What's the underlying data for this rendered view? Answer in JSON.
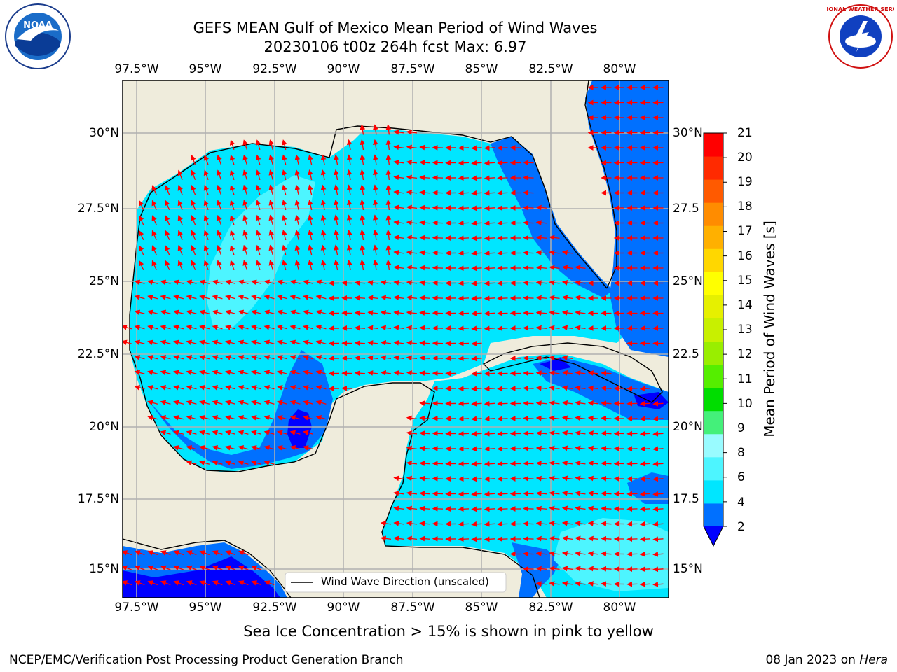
{
  "title": {
    "line1": "GEFS MEAN Gulf of Mexico Mean Period of Wind Waves",
    "line2": "20230106 t00z 264h fcst   Max: 6.97"
  },
  "axes": {
    "lon_labels": [
      "97.5°W",
      "95°W",
      "92.5°W",
      "90°W",
      "87.5°W",
      "85°W",
      "82.5°W",
      "80°W"
    ],
    "lat_labels_left": [
      "30°N",
      "27.5°N",
      "25°N",
      "22.5°N",
      "20°N",
      "17.5°N",
      "15°N"
    ],
    "lat_labels_right": [
      "30°N",
      "27.5",
      "25°N",
      "22.5",
      "20°N",
      "17.5",
      "15°N"
    ]
  },
  "legend": {
    "label": "Wind Wave Direction (unscaled)"
  },
  "colorbar": {
    "label": "Mean Period of Wind Waves [s]",
    "ticks": [
      "21",
      "20",
      "19",
      "18",
      "17",
      "16",
      "15",
      "14",
      "13",
      "12",
      "11",
      "10",
      "9",
      "8",
      "6",
      "4",
      "2"
    ],
    "colors": [
      "#0000ff",
      "#0070ff",
      "#00e6ff",
      "#4df5ff",
      "#99fbff",
      "#44f07a",
      "#00dd00",
      "#55ee00",
      "#99ee00",
      "#c8f000",
      "#e6f000",
      "#ffff00",
      "#ffd700",
      "#ffb000",
      "#ff8c00",
      "#ff5a00",
      "#ff2a00",
      "#ff0000"
    ]
  },
  "notes": {
    "sea_ice": "Sea Ice Concentration > 15% is shown in pink to yellow",
    "credit": "NCEP/EMC/Verification Post Processing Product Generation Branch",
    "date_prefix": "08 Jan 2023 on ",
    "machine": "Hera"
  },
  "logos": {
    "noaa_text": "NOAA",
    "nws_text": "NATIONAL WEATHER SERVICE"
  }
}
